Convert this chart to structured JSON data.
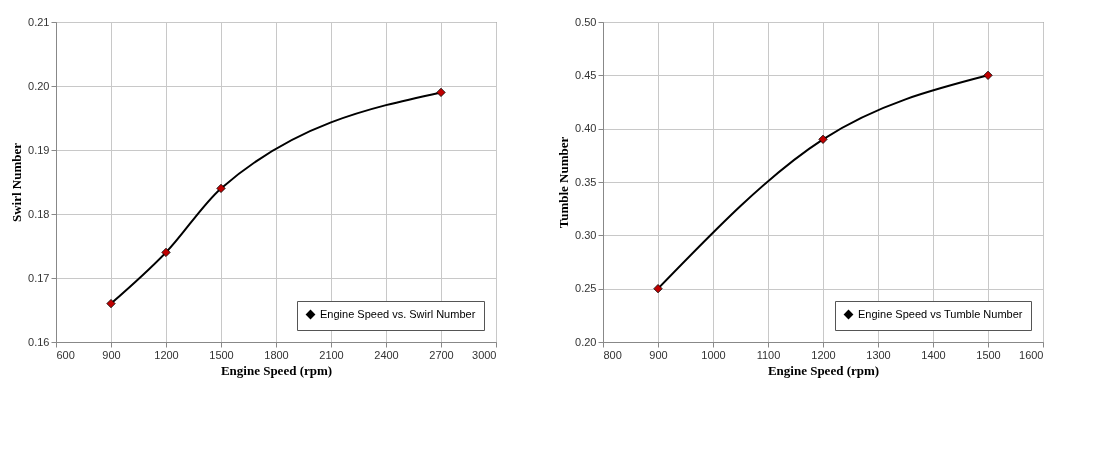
{
  "chart_data": [
    {
      "type": "line",
      "xlabel": "Engine Speed (rpm)",
      "ylabel": "Swirl Number",
      "x": [
        900,
        1200,
        1500,
        2700
      ],
      "series": [
        {
          "name": "Engine Speed vs. Swirl Number",
          "color": "#000000",
          "values": [
            0.166,
            0.174,
            0.184,
            0.199
          ]
        }
      ],
      "xlim": [
        600,
        3000
      ],
      "xticks": [
        600,
        900,
        1200,
        1500,
        1800,
        2100,
        2400,
        2700,
        3000
      ],
      "ylim": [
        0.16,
        0.21
      ],
      "yticks": [
        {
          "value": 0.16,
          "label": "0.16"
        },
        {
          "value": 0.17,
          "label": "0.17"
        },
        {
          "value": 0.18,
          "label": "0.18"
        },
        {
          "value": 0.19,
          "label": "0.19"
        },
        {
          "value": 0.2,
          "label": "0.20"
        },
        {
          "value": 0.21,
          "label": "0.21"
        }
      ],
      "grid": true,
      "legend": "bottom right",
      "marker": "diamond",
      "line_style": "solid"
    },
    {
      "type": "line",
      "xlabel": "Engine Speed (rpm)",
      "ylabel": "Tumble Number",
      "x": [
        900,
        1200,
        1500
      ],
      "series": [
        {
          "name": "Engine Speed vs Tumble Number",
          "color": "#000000",
          "values": [
            0.25,
            0.39,
            0.45
          ]
        }
      ],
      "xlim": [
        800,
        1600
      ],
      "xticks": [
        800,
        900,
        1000,
        1100,
        1200,
        1300,
        1400,
        1500,
        1600
      ],
      "ylim": [
        0.2,
        0.5
      ],
      "yticks": [
        {
          "value": 0.2,
          "label": "0.20"
        },
        {
          "value": 0.25,
          "label": "0.25"
        },
        {
          "value": 0.3,
          "label": "0.30"
        },
        {
          "value": 0.35,
          "label": "0.35"
        },
        {
          "value": 0.4,
          "label": "0.40"
        },
        {
          "value": 0.45,
          "label": "0.45"
        },
        {
          "value": 0.5,
          "label": "0.50"
        }
      ],
      "grid": true,
      "legend": "bottom right",
      "marker": "diamond",
      "line_style": "solid"
    }
  ]
}
